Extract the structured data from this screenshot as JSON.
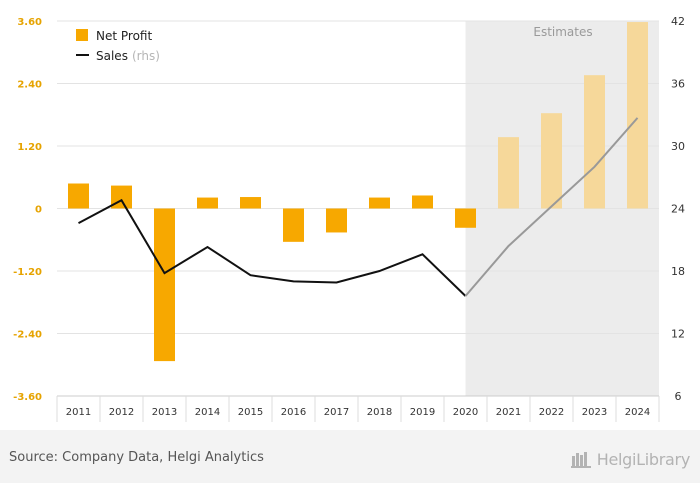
{
  "chart_data": {
    "type": "bar+line",
    "categories": [
      "2011",
      "2012",
      "2013",
      "2014",
      "2015",
      "2016",
      "2017",
      "2018",
      "2019",
      "2020",
      "2021",
      "2022",
      "2023",
      "2024"
    ],
    "series": [
      {
        "name": "Net Profit",
        "type": "bar",
        "axis": "left",
        "color": "#f7a800",
        "estimate_color": "#f6d89a",
        "values": [
          0.48,
          0.44,
          -2.93,
          0.21,
          0.22,
          -0.64,
          -0.46,
          0.21,
          0.25,
          -0.37,
          1.37,
          1.83,
          2.56,
          3.58
        ]
      },
      {
        "name": "Sales",
        "name_suffix": "(rhs)",
        "type": "line",
        "axis": "right",
        "color": "#111111",
        "estimate_color": "#999999",
        "values": [
          22.6,
          24.8,
          17.8,
          20.3,
          17.6,
          17.0,
          16.9,
          18.0,
          19.6,
          15.6,
          20.4,
          24.2,
          28.0,
          32.7
        ]
      }
    ],
    "estimate_start_index": 10,
    "estimate_shade_start_index": 9.5,
    "estimates_label": "Estimates",
    "y_left": {
      "min": -3.6,
      "max": 3.6,
      "ticks": [
        "3.60",
        "2.40",
        "1.20",
        "0",
        "-1.20",
        "-2.40",
        "-3.60"
      ]
    },
    "y_right": {
      "min": 6,
      "max": 42,
      "ticks": [
        "42",
        "36",
        "30",
        "24",
        "18",
        "12",
        "6"
      ]
    },
    "grid": true,
    "legend_position": "top-left"
  },
  "footer": {
    "source": "Source: Company Data, Helgi Analytics",
    "logo": "HelgiLibrary"
  }
}
